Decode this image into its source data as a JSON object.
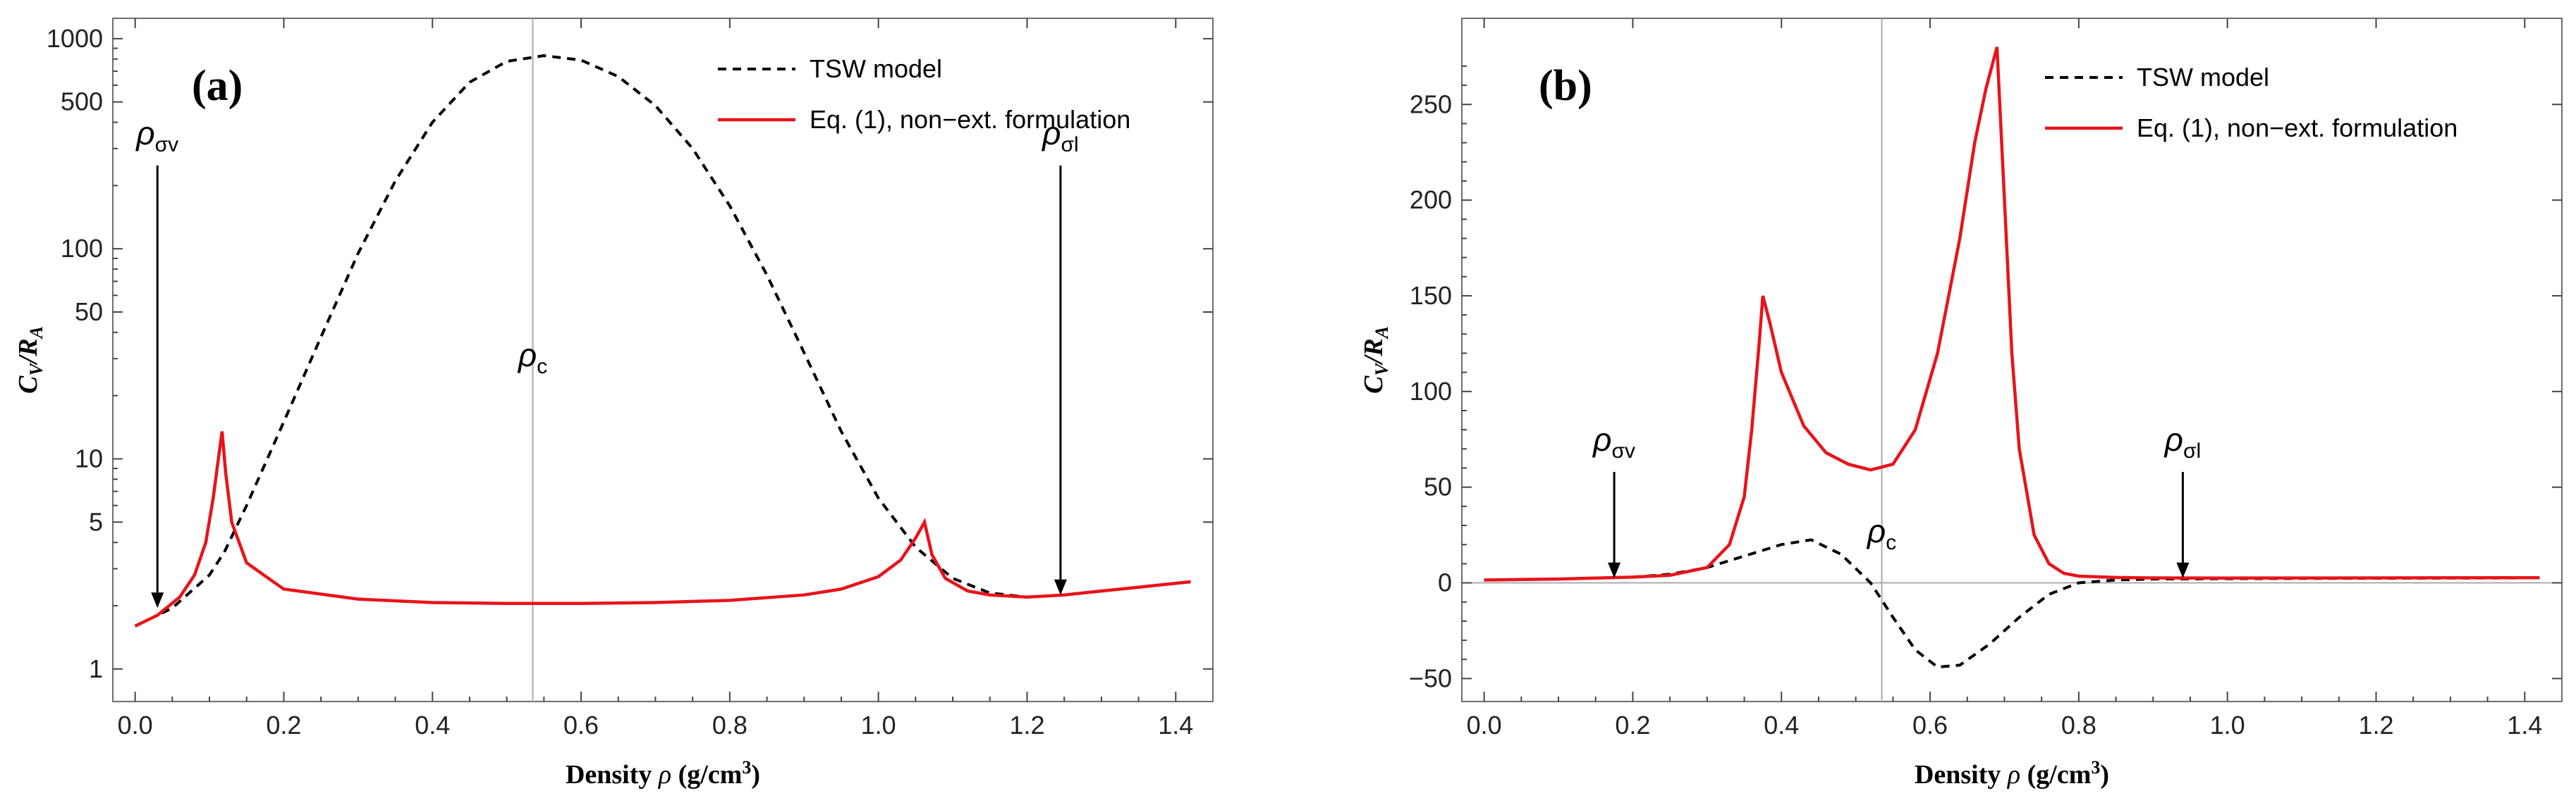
{
  "chart_data": [
    {
      "type": "line",
      "panel_label": "(a)",
      "xlabel": "Density ρ (g/cm³)",
      "ylabel": "C_V/R_A",
      "ylabel_main": "C",
      "ylabel_sub1": "V",
      "ylabel_mid": "/R",
      "ylabel_sub2": "A",
      "xlabel_main": "Density ",
      "xlabel_rho": "ρ",
      "xlabel_units": " (g/cm",
      "xlabel_exp": "3",
      "xlabel_close": ")",
      "yscale": "log",
      "xlim": [
        -0.03,
        1.45
      ],
      "ylim": [
        0.7,
        1250
      ],
      "xticks": [
        0.0,
        0.2,
        0.4,
        0.6,
        0.8,
        1.0,
        1.2,
        1.4
      ],
      "xtick_labels": [
        "0.0",
        "0.2",
        "0.4",
        "0.6",
        "0.8",
        "1.0",
        "1.2",
        "1.4"
      ],
      "yticks": [
        1,
        5,
        10,
        50,
        100,
        500,
        1000
      ],
      "ytick_labels": [
        "1",
        "5",
        "10",
        "50",
        "100",
        "500",
        "1000"
      ],
      "critical_density": 0.535,
      "legend_position": "top-right",
      "series": [
        {
          "name": "TSW model",
          "style": "dashed",
          "color": "#000000",
          "x": [
            0.0,
            0.05,
            0.1,
            0.12,
            0.15,
            0.2,
            0.25,
            0.3,
            0.35,
            0.4,
            0.45,
            0.5,
            0.55,
            0.6,
            0.65,
            0.7,
            0.75,
            0.8,
            0.85,
            0.9,
            0.95,
            1.0,
            1.05,
            1.1,
            1.15,
            1.2,
            1.25,
            1.3,
            1.35,
            1.42
          ],
          "values": [
            1.6,
            1.95,
            2.8,
            3.6,
            6.0,
            15.0,
            38.0,
            95.0,
            210.0,
            400.0,
            620.0,
            780.0,
            830.0,
            790.0,
            660.0,
            480.0,
            300.0,
            160.0,
            75.0,
            32.0,
            13.5,
            6.5,
            3.8,
            2.7,
            2.3,
            2.2,
            2.25,
            2.35,
            2.45,
            2.6
          ]
        },
        {
          "name": "Eq. (1), non−ext. formulation",
          "style": "solid",
          "color": "#e8131b",
          "x": [
            0.0,
            0.03,
            0.06,
            0.08,
            0.095,
            0.105,
            0.112,
            0.117,
            0.122,
            0.13,
            0.15,
            0.2,
            0.3,
            0.4,
            0.5,
            0.6,
            0.7,
            0.8,
            0.9,
            0.95,
            1.0,
            1.03,
            1.05,
            1.062,
            1.072,
            1.09,
            1.12,
            1.15,
            1.2,
            1.25,
            1.3,
            1.35,
            1.42
          ],
          "values": [
            1.6,
            1.8,
            2.2,
            2.8,
            4.0,
            6.5,
            10.0,
            13.5,
            8.5,
            5.0,
            3.2,
            2.4,
            2.15,
            2.07,
            2.05,
            2.05,
            2.07,
            2.12,
            2.25,
            2.4,
            2.75,
            3.3,
            4.2,
            5.0,
            3.5,
            2.7,
            2.35,
            2.25,
            2.2,
            2.25,
            2.35,
            2.45,
            2.6
          ]
        }
      ],
      "annotations": [
        {
          "label": "ρσv",
          "main": "ρ",
          "sub": "σv",
          "x": 0.03,
          "y": 1.95
        },
        {
          "label": "ρc",
          "main": "ρ",
          "sub": "c",
          "x": 0.535,
          "y": 32
        },
        {
          "label": "ρσl",
          "main": "ρ",
          "sub": "σl",
          "x": 1.245,
          "y": 2.25
        }
      ]
    },
    {
      "type": "line",
      "panel_label": "(b)",
      "xlabel": "Density ρ (g/cm³)",
      "ylabel": "C_V/R_A",
      "ylabel_main": "C",
      "ylabel_sub1": "V",
      "ylabel_mid": "/R",
      "ylabel_sub2": "A",
      "xlabel_main": "Density ",
      "xlabel_rho": "ρ",
      "xlabel_units": " (g/cm",
      "xlabel_exp": "3",
      "xlabel_close": ")",
      "yscale": "linear",
      "xlim": [
        -0.03,
        1.45
      ],
      "ylim": [
        -62,
        295
      ],
      "xticks": [
        0.0,
        0.2,
        0.4,
        0.6,
        0.8,
        1.0,
        1.2,
        1.4
      ],
      "xtick_labels": [
        "0.0",
        "0.2",
        "0.4",
        "0.6",
        "0.8",
        "1.0",
        "1.2",
        "1.4"
      ],
      "yticks": [
        -50,
        0,
        50,
        100,
        150,
        200,
        250
      ],
      "ytick_labels": [
        "−50",
        "0",
        "50",
        "100",
        "150",
        "200",
        "250"
      ],
      "critical_density": 0.535,
      "legend_position": "top-right",
      "series": [
        {
          "name": "TSW model",
          "style": "dashed",
          "color": "#000000",
          "x": [
            0.0,
            0.1,
            0.2,
            0.25,
            0.3,
            0.35,
            0.4,
            0.44,
            0.48,
            0.52,
            0.55,
            0.58,
            0.61,
            0.64,
            0.68,
            0.72,
            0.76,
            0.8,
            0.85,
            0.9,
            1.0,
            1.2,
            1.42
          ],
          "values": [
            1.5,
            2.0,
            3.0,
            4.5,
            8.0,
            14.0,
            20.0,
            22.5,
            15.0,
            0.0,
            -18.0,
            -35.0,
            -44.0,
            -43.0,
            -32.0,
            -18.0,
            -6.0,
            0.0,
            1.5,
            2.0,
            2.2,
            2.4,
            2.6
          ]
        },
        {
          "name": "Eq. (1), non−ext. formulation",
          "style": "solid",
          "color": "#e8131b",
          "x": [
            0.0,
            0.1,
            0.2,
            0.25,
            0.3,
            0.33,
            0.35,
            0.36,
            0.37,
            0.375,
            0.385,
            0.4,
            0.43,
            0.46,
            0.49,
            0.52,
            0.55,
            0.58,
            0.61,
            0.64,
            0.66,
            0.675,
            0.69,
            0.7,
            0.71,
            0.72,
            0.74,
            0.76,
            0.78,
            0.8,
            0.85,
            0.9,
            1.0,
            1.2,
            1.42
          ],
          "values": [
            1.5,
            2.0,
            3.0,
            4.0,
            8.0,
            20.0,
            45.0,
            80.0,
            125.0,
            150.0,
            135.0,
            110.0,
            82.0,
            68.0,
            62.0,
            59.0,
            62.0,
            80.0,
            120.0,
            180.0,
            230.0,
            258.0,
            280.0,
            200.0,
            120.0,
            70.0,
            25.0,
            10.0,
            5.0,
            3.5,
            2.8,
            2.6,
            2.5,
            2.6,
            2.7
          ]
        }
      ],
      "annotations": [
        {
          "label": "ρσv",
          "main": "ρ",
          "sub": "σv",
          "x": 0.175,
          "y": 2.5
        },
        {
          "label": "ρc",
          "main": "ρ",
          "sub": "c",
          "x": 0.535,
          "y": 22
        },
        {
          "label": "ρσl",
          "main": "ρ",
          "sub": "σl",
          "x": 0.94,
          "y": 2.5
        }
      ]
    }
  ]
}
